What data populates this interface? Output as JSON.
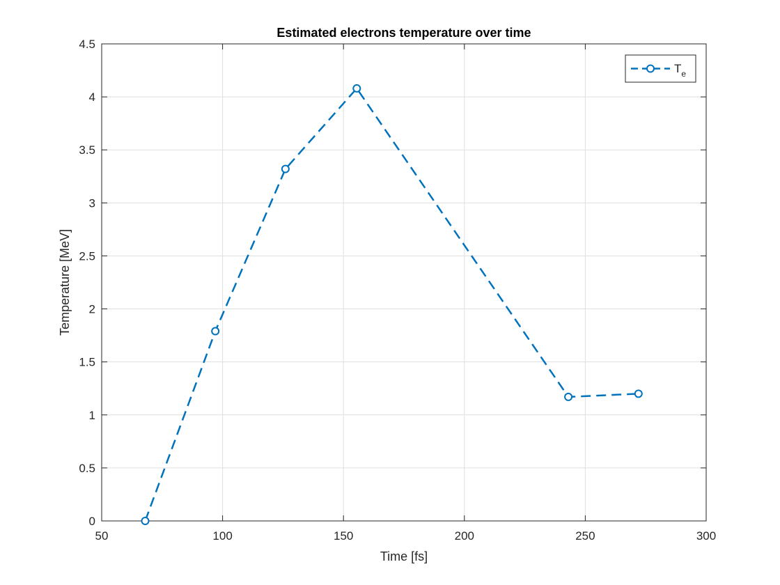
{
  "chart_data": {
    "type": "line",
    "title": "Estimated electrons temperature over time",
    "xlabel": "Time [fs]",
    "ylabel": "Temperature [MeV]",
    "xlim": [
      50,
      300
    ],
    "ylim": [
      0,
      4.5
    ],
    "xticks": [
      50,
      100,
      150,
      200,
      250,
      300
    ],
    "yticks": [
      0,
      0.5,
      1,
      1.5,
      2,
      2.5,
      3,
      3.5,
      4,
      4.5
    ],
    "xtick_labels": [
      "50",
      "100",
      "150",
      "200",
      "250",
      "300"
    ],
    "ytick_labels": [
      "0",
      "0.5",
      "1",
      "1.5",
      "2",
      "2.5",
      "3",
      "3.5",
      "4",
      "4.5"
    ],
    "grid": true,
    "legend_position": "top-right",
    "series": [
      {
        "name_main": "T",
        "name_sub": "e",
        "color": "#0072BD",
        "line_style": "dashed",
        "marker": "circle",
        "x": [
          68,
          97,
          126,
          155.5,
          243,
          272
        ],
        "y": [
          0,
          1.79,
          3.32,
          4.08,
          1.17,
          1.2
        ]
      }
    ]
  }
}
